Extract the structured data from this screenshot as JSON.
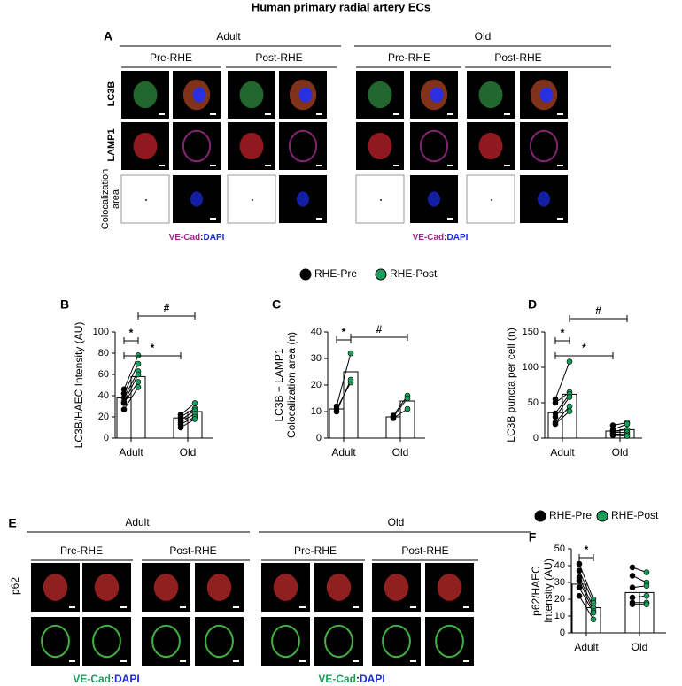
{
  "title": "Human primary radial artery ECs",
  "panel_a": {
    "letter": "A",
    "groups": [
      "Adult",
      "Old"
    ],
    "conditions": [
      "Pre-RHE",
      "Post-RHE"
    ],
    "rows": [
      "LC3B",
      "LAMP1",
      [
        "Colocalization",
        "area"
      ]
    ],
    "stain": [
      "VE-Cad",
      ":",
      "DAPI"
    ]
  },
  "panel_e": {
    "letter": "E",
    "groups": [
      "Adult",
      "Old"
    ],
    "conditions": [
      "Pre-RHE",
      "Post-RHE"
    ],
    "row": "p62",
    "stain": [
      "VE-Cad",
      ":",
      "DAPI"
    ]
  },
  "chart_data": [
    {
      "type": "bar",
      "letter": "B",
      "ylabel": [
        "LC3B/HAEC Intensity (AU)"
      ],
      "categories": [
        "Adult",
        "Old"
      ],
      "ylim": [
        0,
        100
      ],
      "yticks": [
        0,
        20,
        40,
        60,
        80,
        100
      ],
      "series": [
        {
          "name": "RHE-Pre",
          "color": "#000000",
          "values": [
            38,
            19
          ],
          "points": [
            [
              46,
              42,
              38,
              34,
              33,
              27
            ],
            [
              22,
              20,
              17,
              15,
              13,
              10
            ]
          ]
        },
        {
          "name": "RHE-Post",
          "color": "#1a9e5c",
          "values": [
            58,
            25
          ],
          "points": [
            [
              78,
              70,
              63,
              60,
              53,
              48
            ],
            [
              33,
              28,
              26,
              23,
              20,
              18
            ]
          ]
        }
      ],
      "annotations": [
        "*",
        "*",
        "#"
      ]
    },
    {
      "type": "bar",
      "letter": "C",
      "ylabel": [
        "LC3B + LAMP1",
        "Colocalization area (n)"
      ],
      "categories": [
        "Adult",
        "Old"
      ],
      "ylim": [
        0,
        40
      ],
      "yticks": [
        0,
        10,
        20,
        30,
        40
      ],
      "series": [
        {
          "name": "RHE-Pre",
          "color": "#000000",
          "values": [
            11,
            8
          ],
          "points": [
            [
              12,
              11,
              10
            ],
            [
              8.5,
              8,
              7.5
            ]
          ]
        },
        {
          "name": "RHE-Post",
          "color": "#1a9e5c",
          "values": [
            25,
            14
          ],
          "points": [
            [
              32,
              21,
              22
            ],
            [
              16,
              15,
              11
            ]
          ]
        }
      ],
      "annotations": [
        "*",
        "#"
      ]
    },
    {
      "type": "bar",
      "letter": "D",
      "ylabel": [
        "LC3B puncta per cell (n)"
      ],
      "categories": [
        "Adult",
        "Old"
      ],
      "ylim": [
        0,
        150
      ],
      "yticks": [
        0,
        50,
        100,
        150
      ],
      "series": [
        {
          "name": "RHE-Pre",
          "color": "#000000",
          "values": [
            36,
            10
          ],
          "points": [
            [
              55,
              50,
              35,
              30,
              22,
              20
            ],
            [
              18,
              12,
              10,
              8,
              6,
              4
            ]
          ]
        },
        {
          "name": "RHE-Post",
          "color": "#1a9e5c",
          "values": [
            62,
            12
          ],
          "points": [
            [
              108,
              65,
              62,
              58,
              45,
              38
            ],
            [
              22,
              20,
              12,
              8,
              5,
              3
            ]
          ]
        }
      ],
      "annotations": [
        "*",
        "*",
        "#"
      ]
    },
    {
      "type": "bar",
      "letter": "F",
      "ylabel": [
        "p62/HAEC",
        "Intensity (AU)"
      ],
      "categories": [
        "Adult",
        "Old"
      ],
      "ylim": [
        0,
        50
      ],
      "yticks": [
        0,
        10,
        20,
        30,
        40,
        50
      ],
      "series": [
        {
          "name": "RHE-Pre",
          "color": "#000000",
          "values": [
            29,
            24
          ],
          "points": [
            [
              41,
              37,
              33,
              31,
              27,
              22
            ],
            [
              39,
              34,
              27,
              21,
              18,
              17
            ]
          ]
        },
        {
          "name": "RHE-Post",
          "color": "#1a9e5c",
          "values": [
            15,
            24
          ],
          "points": [
            [
              20,
              18,
              15,
              13,
              12,
              8
            ],
            [
              36,
              30,
              28,
              22,
              18,
              17
            ]
          ]
        }
      ],
      "annotations": [
        "*"
      ]
    }
  ]
}
